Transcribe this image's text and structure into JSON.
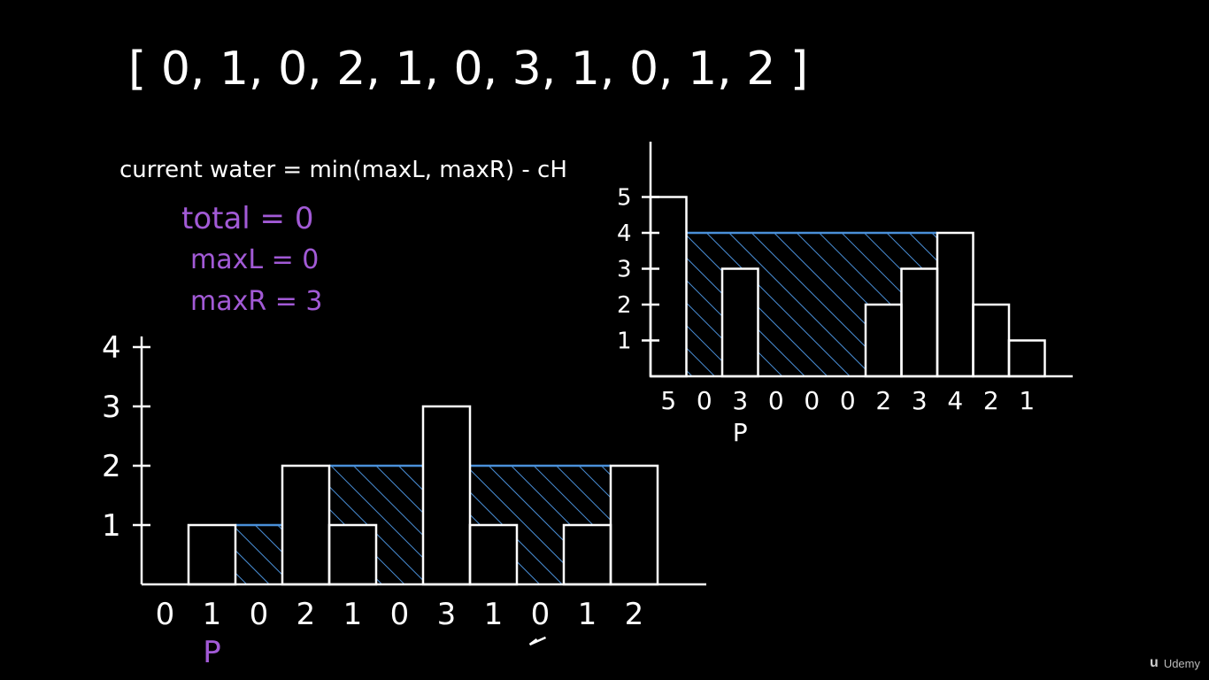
{
  "array_text": "[ 0, 1, 0, 2, 1, 0, 3, 1, 0, 1, 2 ]",
  "formula": "current water = min(maxL, maxR) - cH",
  "vars": {
    "total": "total = 0",
    "maxL": "maxL = 0",
    "maxR": "maxR = 3"
  },
  "pointer_label": "P",
  "brand": {
    "name": "Udemy",
    "logo_glyph": "u"
  },
  "colors": {
    "background": "#000000",
    "ink": "#ffffff",
    "water": "#4a90d9",
    "highlight": "#a25ad6"
  },
  "chart_data": [
    {
      "type": "bar",
      "heights": [
        0,
        1,
        0,
        2,
        1,
        0,
        3,
        1,
        0,
        1,
        2
      ],
      "x_labels": [
        "0",
        "1",
        "0",
        "2",
        "1",
        "0",
        "3",
        "1",
        "0",
        "1",
        "2"
      ],
      "y_ticks": [
        "1",
        "2",
        "3",
        "4"
      ],
      "water_levels": [
        0,
        1,
        1,
        2,
        2,
        2,
        3,
        2,
        2,
        2,
        2
      ],
      "pointer_index": 1,
      "current_index": 8
    },
    {
      "type": "bar",
      "heights": [
        5,
        0,
        3,
        0,
        0,
        0,
        2,
        3,
        4,
        2,
        1
      ],
      "x_labels": [
        "5",
        "0",
        "3",
        "0",
        "0",
        "0",
        "2",
        "3",
        "4",
        "2",
        "1"
      ],
      "y_ticks": [
        "1",
        "2",
        "3",
        "4",
        "5"
      ],
      "water_level": 4,
      "water_range": [
        1,
        7
      ],
      "pointer_index": 2
    }
  ]
}
